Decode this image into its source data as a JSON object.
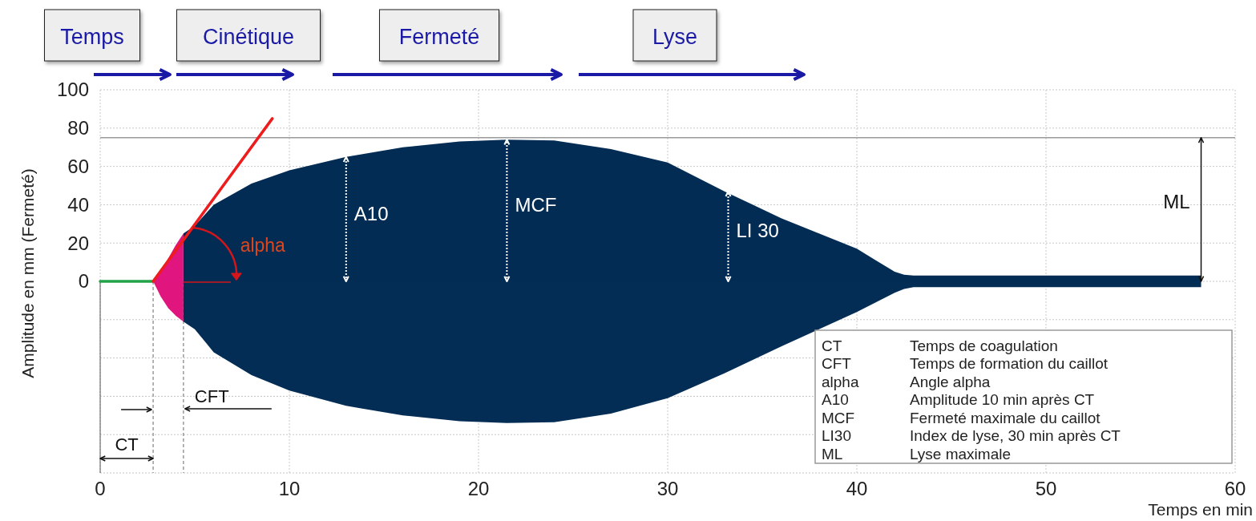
{
  "chart_data": {
    "type": "area",
    "xlabel": "Temps en min",
    "ylabel": "Amplitude en mm (Fermeté)",
    "xlim": [
      0,
      60
    ],
    "xticks": [
      0,
      10,
      20,
      30,
      40,
      50,
      60
    ],
    "ylim": [
      -100,
      100
    ],
    "yticks": [
      {
        "value": -80,
        "label": null
      },
      {
        "value": -60,
        "label": null
      },
      {
        "value": -40,
        "label": null
      },
      {
        "value": -20,
        "label": null
      },
      0,
      20,
      40,
      60,
      80,
      100
    ],
    "grid": true,
    "series": [
      {
        "type": "area",
        "color": "#e0157f",
        "x": [
          2.8,
          3.2,
          3.6,
          4,
          4.4
        ],
        "values": [
          0,
          5,
          12,
          19,
          25
        ]
      },
      {
        "type": "area",
        "color": "#e0167e",
        "x": [
          2.8,
          3.2,
          3.6,
          4,
          4.4
        ],
        "values": [
          0,
          -8,
          -14,
          -18,
          -21
        ]
      },
      {
        "type": "area",
        "color": "#022c54",
        "x": [
          4.4,
          5,
          6,
          8,
          10,
          13,
          16,
          19,
          21.5,
          24,
          27,
          30,
          33,
          36,
          38,
          40,
          41,
          42,
          42.5,
          43,
          50,
          58.2
        ],
        "values": [
          25,
          29,
          40,
          51,
          58,
          65,
          70,
          73,
          74,
          73.5,
          69,
          62,
          47,
          33,
          25,
          17,
          11,
          5,
          3.5,
          3,
          3,
          3
        ]
      },
      {
        "color": "#032d55",
        "x": [
          4.4,
          5,
          6,
          8,
          10,
          13,
          16,
          19,
          21.5,
          24,
          27,
          30,
          33,
          36,
          38,
          40,
          41,
          42,
          42.5,
          43,
          50,
          58.2
        ],
        "values": [
          -21,
          -25,
          -37,
          -49,
          -57,
          -65,
          -70,
          -73,
          -74,
          -73.5,
          -69,
          -61,
          -48,
          -34,
          -25,
          -16,
          -11,
          -6,
          -4,
          -3,
          -3,
          -3
        ]
      },
      {
        "type": "line",
        "color": "#22a34a",
        "x": [
          0,
          2.8
        ],
        "values": [
          0,
          0
        ]
      },
      {
        "type": "line",
        "color": "#ee1c1c",
        "x": [
          2.8,
          9.1
        ],
        "values": [
          0,
          85
        ]
      }
    ],
    "ref_lines": [
      {
        "axis": "y",
        "value": 75,
        "color": "#9a9a9a",
        "line_style": "solid"
      },
      {
        "axis": "x",
        "value": 2.8,
        "color": "#9a9a9a",
        "line_style": "dashed"
      },
      {
        "axis": "x",
        "value": 4.4,
        "color": "#9a9a9a",
        "line_style": "dashed"
      }
    ],
    "annotations": [
      "Temps",
      "Cinétique",
      "Fermeté",
      "Lyse",
      "alpha",
      {
        "text": "A10",
        "x": 13,
        "y": 65
      },
      {
        "text": "MCF",
        "x": 21.5,
        "y": 74
      },
      {
        "text": "LI 30",
        "x": 33.2,
        "y": 47
      },
      {
        "text": "ML",
        "x": 58.2,
        "y": 75
      },
      {
        "text": "CT",
        "x": 2.8
      },
      {
        "text": "CFT",
        "x": 4.4
      },
      "CT",
      "Temps de coagulation",
      "CFT",
      "Temps de formation du caillot",
      "alpha",
      "Angle alpha",
      "A10",
      "Amplitude 10 min après CT",
      "MCF",
      "Fermeté maximale du caillot",
      "LI30",
      "Index de lyse, 30 min après CT",
      "ML",
      "Lyse maximale"
    ]
  }
}
